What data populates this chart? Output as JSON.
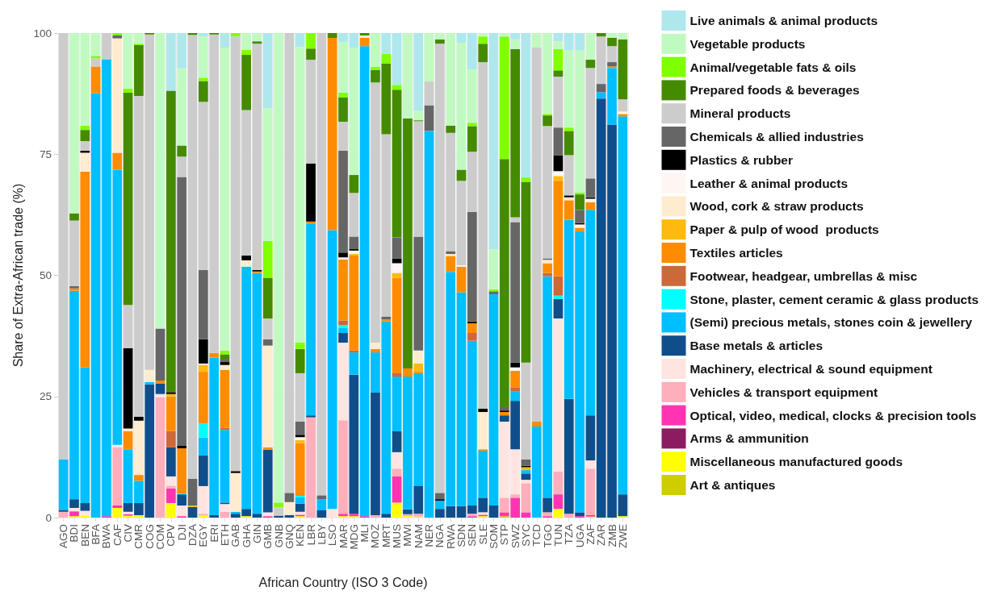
{
  "chart_data": {
    "type": "bar",
    "stacked": true,
    "xlabel": "African Country (ISO 3 Code)",
    "ylabel": "Share of Extra-African trade (%)",
    "categories": [
      "AGO",
      "BDI",
      "BEN",
      "BFA",
      "BWA",
      "CAF",
      "CIV",
      "CMR",
      "COG",
      "COM",
      "CPV",
      "DJI",
      "DZA",
      "EGY",
      "ERI",
      "ETH",
      "GAB",
      "GHA",
      "GIN",
      "GMB",
      "GNB",
      "GNQ",
      "KEN",
      "LBR",
      "LBY",
      "LSO",
      "MAR",
      "MDG",
      "MLI",
      "MOZ",
      "MRT",
      "MUS",
      "MWI",
      "NAM",
      "NER",
      "NGA",
      "RWA",
      "SDN",
      "SEN",
      "SLE",
      "SOM",
      "STP",
      "SWZ",
      "SYC",
      "TCD",
      "TGO",
      "TUN",
      "TZA",
      "UGA",
      "ZAF",
      "ZAR",
      "ZMB",
      "ZWE"
    ],
    "ylim": [
      0,
      100
    ],
    "yticks": [
      0,
      25,
      50,
      75,
      100
    ],
    "grid": true,
    "legend": "right",
    "series": [
      {
        "name": "Art & antiques",
        "color": "#cdcd00",
        "values": [
          0,
          0,
          0,
          0,
          0,
          0,
          0,
          0,
          0,
          0,
          0,
          0,
          0,
          0,
          0,
          0,
          0,
          0,
          0,
          0,
          0,
          0,
          0,
          0,
          0,
          0,
          0,
          0,
          0,
          0,
          0,
          0,
          0,
          0,
          0,
          0,
          0,
          0,
          0,
          0,
          0,
          0.3,
          0,
          0,
          0,
          0,
          0,
          0,
          0,
          0,
          0,
          0,
          0
        ]
      },
      {
        "name": "Miscellaneous manufactured goods",
        "color": "#ffff00",
        "values": [
          0,
          0.3,
          0.4,
          0,
          0,
          2,
          0.4,
          0.5,
          0,
          0,
          3,
          0,
          0,
          0.4,
          0,
          0,
          0,
          0.3,
          0,
          0,
          0,
          0,
          0.3,
          0,
          0,
          0,
          0.3,
          0.3,
          0,
          0,
          0,
          3.1,
          0.3,
          0.2,
          0,
          0,
          0,
          0,
          0,
          0.3,
          0,
          0,
          0,
          0,
          0,
          0,
          1.8,
          0,
          0,
          0.2,
          0,
          0,
          0.3
        ]
      },
      {
        "name": "Arms & ammunition",
        "color": "#8b1c62",
        "values": [
          0,
          0,
          0,
          0,
          0,
          0,
          0,
          0,
          0,
          0,
          0,
          0,
          0,
          0,
          0,
          0,
          0,
          0,
          0,
          0,
          0,
          0,
          0,
          0,
          0,
          0,
          0,
          0,
          0,
          0,
          0,
          0,
          0,
          0,
          0,
          0,
          0,
          0,
          0,
          0,
          0,
          0,
          0,
          0,
          0,
          0,
          0,
          0,
          0,
          0,
          0,
          0,
          0
        ]
      },
      {
        "name": "Optical, video, medical, clocks & precision tools",
        "color": "#ff34b3",
        "values": [
          0,
          1,
          0,
          0,
          0.3,
          0.5,
          0.3,
          0,
          0,
          0,
          3,
          0.3,
          0,
          0,
          0,
          0,
          0,
          0,
          0,
          0.3,
          0,
          0,
          0.3,
          0,
          0,
          0,
          0.5,
          0.5,
          0.3,
          0,
          0,
          5.4,
          0,
          0,
          0,
          0,
          0,
          0,
          0.3,
          0.3,
          0,
          0.8,
          4.1,
          1.1,
          0,
          0.3,
          3,
          0,
          0.3,
          0.3,
          0,
          0,
          0
        ]
      },
      {
        "name": "Vehicles & transport equipment",
        "color": "#ffaebb",
        "values": [
          1.2,
          0,
          0,
          0,
          0,
          12,
          0,
          0,
          0,
          24.8,
          0.6,
          0,
          0,
          0.4,
          0,
          1.2,
          0,
          0,
          0,
          0,
          0,
          0,
          0,
          20.7,
          0,
          0,
          19.3,
          0,
          0,
          0.5,
          0,
          1.6,
          0.4,
          0.6,
          0,
          0,
          0,
          0,
          0.5,
          0,
          0,
          3,
          0.7,
          6,
          0,
          0.8,
          4.7,
          0.8,
          0,
          9.6,
          0,
          0,
          0
        ]
      },
      {
        "name": "Machinery, electrical & sound equipment",
        "color": "#ffe4e1",
        "values": [
          0,
          0.7,
          1,
          0,
          0,
          0.5,
          0.5,
          0,
          0,
          0.7,
          1.9,
          2.2,
          0,
          5.7,
          0,
          1.6,
          0,
          0,
          0,
          0.8,
          0,
          0,
          0.6,
          0,
          0,
          1.8,
          16,
          0,
          0,
          0,
          0,
          3.4,
          0,
          0,
          0,
          0,
          0,
          0,
          0,
          0.5,
          0,
          15.7,
          9.3,
          0.7,
          0,
          0,
          31.6,
          0,
          0,
          1.7,
          0,
          0,
          0
        ]
      },
      {
        "name": "Base metals & articles",
        "color": "#104e8b",
        "values": [
          0.4,
          1.8,
          1.6,
          0,
          0,
          0,
          1.8,
          2.5,
          27.5,
          2.2,
          6,
          2.3,
          2.2,
          6.3,
          0.5,
          0.3,
          0.8,
          1.5,
          0.8,
          12.9,
          0.4,
          0.5,
          1.7,
          0.4,
          1.5,
          0,
          2,
          28.7,
          0,
          25.3,
          0.8,
          4.3,
          1,
          5.7,
          0,
          1.8,
          2.4,
          2.4,
          1.7,
          3,
          2.5,
          1.3,
          10,
          1.3,
          0,
          3,
          4,
          23.7,
          0.8,
          9.3,
          86.5,
          81.1,
          4.5
        ]
      },
      {
        "name": "(Semi) precious metals, stones coin & jewellery",
        "color": "#00bfff",
        "values": [
          10.4,
          43,
          28,
          87.6,
          94.3,
          56.8,
          11,
          4.6,
          0.5,
          0,
          0,
          0,
          0,
          3.7,
          32.5,
          15,
          0.4,
          50,
          49.7,
          0,
          0,
          0,
          1.3,
          39.6,
          2.3,
          57.5,
          1,
          4.6,
          97,
          8.3,
          39.7,
          11.3,
          27.4,
          23.3,
          79.8,
          1.7,
          48.3,
          44.1,
          34,
          9.7,
          43.6,
          0,
          2,
          0.7,
          18.8,
          45.7,
          0,
          37,
          58,
          42.4,
          1.3,
          11.7,
          78
        ]
      },
      {
        "name": "Stone, plaster, cement ceramic & glass products",
        "color": "#00ffff",
        "values": [
          0,
          0,
          0,
          0,
          0,
          0,
          0,
          0,
          0,
          0,
          0,
          0.2,
          0,
          3,
          0,
          0,
          0,
          0,
          0,
          0,
          0,
          0,
          0.3,
          0,
          0,
          0,
          0.6,
          0,
          0,
          0,
          0,
          0,
          0,
          0,
          0,
          0,
          0,
          0,
          0,
          0,
          0,
          0,
          0,
          0,
          0,
          0,
          0.7,
          0,
          0,
          0,
          0,
          0,
          0
        ]
      },
      {
        "name": "Footwear, headgear, umbrellas & misc",
        "color": "#cd6839",
        "values": [
          0,
          0,
          0,
          0,
          0,
          0,
          0,
          0,
          0,
          0,
          3.4,
          0,
          0,
          0,
          0,
          0.4,
          0,
          0,
          0,
          0,
          0,
          0,
          0,
          0,
          0,
          0,
          1,
          0.4,
          0,
          0,
          0,
          0.7,
          0,
          0,
          0,
          0,
          0,
          0,
          1.6,
          0,
          0,
          0,
          0.7,
          0,
          0,
          0.7,
          4,
          0,
          0,
          0,
          0,
          0,
          0
        ]
      },
      {
        "name": "Textiles articles",
        "color": "#ff8c00",
        "values": [
          0,
          0.5,
          40.4,
          5.5,
          0,
          3.5,
          3.8,
          1.2,
          0,
          0.6,
          7.1,
          9.3,
          0,
          10.6,
          1,
          12,
          0,
          0,
          0.3,
          0.5,
          0,
          0,
          10.9,
          0.4,
          0,
          39.7,
          12.6,
          19.6,
          1.7,
          0.7,
          0.4,
          19.7,
          1.7,
          0.3,
          0,
          0,
          3.3,
          5.3,
          2,
          0.3,
          0,
          0.7,
          3.5,
          0,
          1,
          2,
          19.7,
          4,
          0.7,
          1.6,
          0,
          0.3,
          0.5
        ]
      },
      {
        "name": "Paper & pulp of wood  products",
        "color": "#ffb90f",
        "values": [
          0,
          0,
          0,
          0,
          0,
          0,
          0,
          0,
          0,
          0,
          0.5,
          0,
          0.3,
          1.4,
          0,
          0,
          0,
          0,
          0,
          0,
          0,
          0,
          0.6,
          0,
          0,
          0,
          0,
          0.3,
          0,
          0,
          0,
          1,
          0,
          1.7,
          0,
          0,
          0,
          0,
          0,
          0,
          0,
          0,
          0,
          0.6,
          0,
          0,
          1,
          0,
          0,
          0,
          0,
          0,
          0
        ]
      },
      {
        "name": "Wood, cork & straw products",
        "color": "#ffebcd",
        "values": [
          0,
          0,
          3.9,
          0,
          0,
          23.6,
          0.6,
          11.2,
          2.5,
          0,
          0,
          0,
          0,
          0.3,
          0,
          1,
          8,
          1.3,
          0,
          21,
          0,
          2.7,
          0,
          0,
          0,
          0,
          0,
          0,
          0.5,
          1.3,
          0,
          0,
          0,
          2.7,
          0,
          0,
          0.4,
          0,
          0,
          7.7,
          0,
          0,
          0,
          0,
          0,
          0.7,
          0,
          0.6,
          0.3,
          0,
          0,
          0,
          0
        ]
      },
      {
        "name": "Leather & animal products",
        "color": "#fff5f2",
        "values": [
          0,
          0,
          0,
          0,
          0,
          0,
          0,
          0,
          0,
          0,
          0,
          0,
          0,
          0,
          0,
          0,
          0,
          0,
          0,
          0,
          0,
          0,
          0.6,
          0,
          0,
          0,
          0.4,
          0.7,
          0,
          0,
          0,
          2,
          0,
          0,
          0,
          0,
          0,
          0.3,
          0,
          0,
          0,
          0,
          0.7,
          0,
          0,
          0,
          1,
          0,
          0.4,
          0.7,
          0,
          0,
          0.5
        ]
      },
      {
        "name": "Plastics & rubber",
        "color": "#000000",
        "values": [
          0,
          0,
          0.4,
          0,
          0,
          0,
          16.6,
          0.8,
          0,
          0,
          0.4,
          0.6,
          0,
          5,
          0,
          0.6,
          0.4,
          1,
          0.3,
          0,
          0,
          0,
          0.5,
          12,
          0,
          0,
          1,
          0.3,
          0,
          0,
          0,
          1,
          0,
          0,
          0,
          0.3,
          0,
          0,
          0.4,
          0.7,
          0,
          0.3,
          1,
          0.3,
          0,
          0,
          3.3,
          0.4,
          0.3,
          0.3,
          0,
          0,
          0
        ]
      },
      {
        "name": "Chemicals & allied industries",
        "color": "#666666",
        "values": [
          0,
          0.5,
          0,
          0,
          0,
          0.6,
          0,
          0,
          0,
          10.7,
          0,
          55.4,
          5.5,
          14.3,
          0,
          0.5,
          0,
          0,
          0,
          1.3,
          0,
          1.9,
          2.7,
          0,
          0.8,
          0,
          21,
          2.6,
          0,
          0,
          0.6,
          4.3,
          0,
          23.5,
          5.3,
          1.3,
          0.6,
          0,
          22.6,
          0,
          0.6,
          0.7,
          29,
          1.3,
          0,
          0.3,
          5.7,
          0,
          2.7,
          3.9,
          1.7,
          0.9,
          0
        ]
      },
      {
        "name": "Mineral products",
        "color": "#cccccc",
        "values": [
          88,
          13.5,
          2,
          1.7,
          5.4,
          0,
          8.9,
          66.2,
          69.2,
          0,
          0,
          4.2,
          91.6,
          34.7,
          65.7,
          0,
          89.7,
          30,
          46.7,
          4.3,
          1.7,
          94.9,
          10,
          21.4,
          95.4,
          0,
          6,
          9,
          0,
          53.7,
          37.6,
          0,
          0,
          23.8,
          4.9,
          92.7,
          24.4,
          17.4,
          12.4,
          71.5,
          0,
          0,
          1,
          20,
          77.2,
          27.3,
          10.5,
          8.3,
          0,
          22.8,
          9.8,
          3.3,
          2.5
        ]
      },
      {
        "name": "Prepared foods & beverages",
        "color": "#458b00",
        "values": [
          0,
          1.5,
          2.3,
          0,
          0,
          0,
          43.8,
          10.5,
          0.3,
          0,
          62.2,
          2.3,
          0.4,
          4.3,
          0.3,
          1.1,
          0,
          11.4,
          0.5,
          8.4,
          0,
          0,
          5,
          2.3,
          0,
          1,
          5,
          3.7,
          0.5,
          2.6,
          14.6,
          30.5,
          51.6,
          0.2,
          0,
          0.9,
          1.5,
          2.3,
          5.3,
          3.8,
          0,
          51.2,
          34.7,
          37.3,
          0,
          2.2,
          1.3,
          5,
          3.2,
          1.7,
          0.7,
          1.7,
          12.4
        ]
      },
      {
        "name": "Animal/vegetable fats & oils",
        "color": "#7fff00",
        "values": [
          0,
          0,
          0.9,
          0.5,
          0,
          0.5,
          0.8,
          0.3,
          0,
          0,
          0,
          0,
          0,
          0.7,
          0,
          0.8,
          0.7,
          1,
          0,
          7.6,
          1,
          0,
          1.3,
          3.2,
          0,
          0,
          1,
          0,
          0,
          0.6,
          2,
          1,
          0,
          0,
          0,
          0,
          0,
          0,
          0.7,
          1.5,
          0.4,
          25.3,
          0,
          0.9,
          0,
          0.3,
          4.4,
          0.7,
          0.4,
          0,
          0,
          0,
          0
        ]
      },
      {
        "name": "Vegetable products",
        "color": "#c1fac1",
        "values": [
          0,
          37.2,
          19.1,
          4.7,
          0,
          0,
          11.5,
          2.2,
          0,
          61,
          0,
          15.9,
          0,
          8.5,
          0,
          62.5,
          0,
          3.5,
          1.7,
          27.4,
          96.9,
          0,
          61,
          0,
          0,
          0,
          10.4,
          26.3,
          0,
          7,
          0,
          0,
          17.6,
          2,
          10,
          1.3,
          19.1,
          26.2,
          11,
          0.7,
          8.3,
          0.7,
          2,
          0,
          3,
          16.7,
          1.6,
          16,
          29.4,
          5.5,
          0,
          1,
          1.3
        ]
      },
      {
        "name": "Live animals & animal products",
        "color": "#aee8ed",
        "values": [
          0,
          0,
          0,
          0,
          0,
          0,
          0,
          0,
          0,
          0,
          11.9,
          7.3,
          0,
          0.7,
          0,
          3,
          0,
          0,
          0,
          15.5,
          0,
          0,
          2.9,
          0,
          0,
          0,
          1.9,
          3,
          0,
          0,
          4.3,
          10.7,
          0,
          16,
          0,
          0,
          0,
          2,
          7.5,
          0,
          44.6,
          0,
          1.3,
          29.8,
          0,
          0,
          1.7,
          3.5,
          3.5,
          0,
          0,
          0,
          0
        ]
      }
    ]
  }
}
